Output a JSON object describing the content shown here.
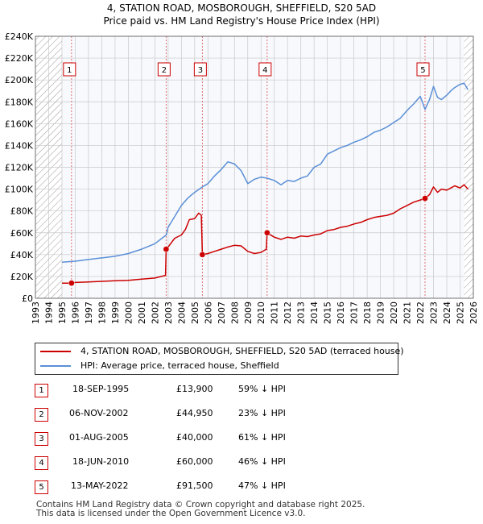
{
  "title_line1": "4, STATION ROAD, MOSBOROUGH, SHEFFIELD, S20 5AD",
  "title_line2": "Price paid vs. HM Land Registry's House Price Index (HPI)",
  "colors": {
    "property": "#cc0000",
    "hpi": "#5b8fd6",
    "shade": "#e8eef8",
    "hatch": "#999999",
    "grid": "#c8c8c8",
    "vline": "#e06060"
  },
  "legend": {
    "property_label": "4, STATION ROAD, MOSBOROUGH, SHEFFIELD, S20 5AD (terraced house)",
    "hpi_label": "HPI: Average price, terraced house, Sheffield"
  },
  "sales": [
    {
      "num": "1",
      "date": "18-SEP-1995",
      "price": "£13,900",
      "hpi": "59% ↓ HPI"
    },
    {
      "num": "2",
      "date": "06-NOV-2002",
      "price": "£44,950",
      "hpi": "23% ↓ HPI"
    },
    {
      "num": "3",
      "date": "01-AUG-2005",
      "price": "£40,000",
      "hpi": "61% ↓ HPI"
    },
    {
      "num": "4",
      "date": "18-JUN-2010",
      "price": "£60,000",
      "hpi": "46% ↓ HPI"
    },
    {
      "num": "5",
      "date": "13-MAY-2022",
      "price": "£91,500",
      "hpi": "47% ↓ HPI"
    }
  ],
  "footer": {
    "line1": "Contains HM Land Registry data © Crown copyright and database right 2025.",
    "line2": "This data is licensed under the Open Government Licence v3.0."
  },
  "chart_data": {
    "type": "line",
    "title": "4, STATION ROAD, MOSBOROUGH, SHEFFIELD, S20 5AD — Price paid vs. HM Land Registry's House Price Index (HPI)",
    "xlabel": "",
    "ylabel": "",
    "xlim": [
      1993,
      2026
    ],
    "ylim": [
      0,
      240000
    ],
    "x_ticks": [
      1993,
      1994,
      1995,
      1996,
      1997,
      1998,
      1999,
      2000,
      2001,
      2002,
      2003,
      2004,
      2005,
      2006,
      2007,
      2008,
      2009,
      2010,
      2011,
      2012,
      2013,
      2014,
      2015,
      2016,
      2017,
      2018,
      2019,
      2020,
      2021,
      2022,
      2023,
      2024,
      2025,
      2026
    ],
    "y_ticks": [
      0,
      20000,
      40000,
      60000,
      80000,
      100000,
      120000,
      140000,
      160000,
      180000,
      200000,
      220000,
      240000
    ],
    "y_tick_labels": [
      "£0",
      "£20K",
      "£40K",
      "£60K",
      "£80K",
      "£100K",
      "£120K",
      "£140K",
      "£160K",
      "£180K",
      "£200K",
      "£220K",
      "£240K"
    ],
    "shaded_ranges": [
      [
        1993,
        1995.0
      ],
      [
        2025.3,
        2026
      ]
    ],
    "sale_markers": [
      {
        "label": "1",
        "x": 1995.72,
        "y": 13900
      },
      {
        "label": "2",
        "x": 2002.85,
        "y": 44950
      },
      {
        "label": "3",
        "x": 2005.58,
        "y": 40000
      },
      {
        "label": "4",
        "x": 2010.46,
        "y": 60000
      },
      {
        "label": "5",
        "x": 2022.36,
        "y": 91500
      }
    ],
    "series": [
      {
        "name": "4, STATION ROAD, MOSBOROUGH, SHEFFIELD, S20 5AD (terraced house)",
        "x": [
          1995.0,
          1995.72,
          1996.0,
          1997.0,
          1998.0,
          1999.0,
          2000.0,
          2001.0,
          2002.0,
          2002.8,
          2002.85,
          2003.0,
          2003.5,
          2004.0,
          2004.3,
          2004.6,
          2005.0,
          2005.3,
          2005.5,
          2005.58,
          2006.0,
          2006.5,
          2007.0,
          2007.5,
          2008.0,
          2008.5,
          2009.0,
          2009.5,
          2010.0,
          2010.4,
          2010.46,
          2011.0,
          2011.5,
          2012.0,
          2012.5,
          2013.0,
          2013.5,
          2014.0,
          2014.5,
          2015.0,
          2015.5,
          2016.0,
          2016.5,
          2017.0,
          2017.5,
          2018.0,
          2018.5,
          2019.0,
          2019.5,
          2020.0,
          2020.5,
          2021.0,
          2021.5,
          2022.0,
          2022.36,
          2022.7,
          2023.0,
          2023.3,
          2023.6,
          2024.0,
          2024.3,
          2024.6,
          2025.0,
          2025.3,
          2025.6
        ],
        "y": [
          13900,
          13900,
          14500,
          15000,
          15500,
          16000,
          16500,
          17500,
          18500,
          21000,
          44950,
          47000,
          55000,
          58000,
          63000,
          72000,
          73000,
          78000,
          76000,
          40000,
          41000,
          43000,
          45000,
          47000,
          48500,
          48000,
          43000,
          41000,
          42000,
          45000,
          60000,
          56000,
          54000,
          56000,
          55000,
          57000,
          56500,
          58000,
          59000,
          62000,
          63000,
          65000,
          66000,
          68000,
          69500,
          72000,
          74000,
          75000,
          76000,
          78000,
          82000,
          85000,
          88000,
          90000,
          91500,
          95000,
          102000,
          97000,
          100000,
          99000,
          101000,
          103000,
          101000,
          104000,
          100000
        ]
      },
      {
        "name": "HPI: Average price, terraced house, Sheffield",
        "x": [
          1995.0,
          1996.0,
          1997.0,
          1998.0,
          1999.0,
          2000.0,
          2001.0,
          2002.0,
          2002.85,
          2003.0,
          2003.5,
          2004.0,
          2004.5,
          2005.0,
          2005.58,
          2006.0,
          2006.5,
          2007.0,
          2007.5,
          2008.0,
          2008.5,
          2009.0,
          2009.5,
          2010.0,
          2010.46,
          2011.0,
          2011.5,
          2012.0,
          2012.5,
          2013.0,
          2013.5,
          2014.0,
          2014.5,
          2015.0,
          2015.5,
          2016.0,
          2016.5,
          2017.0,
          2017.5,
          2018.0,
          2018.5,
          2019.0,
          2019.5,
          2020.0,
          2020.5,
          2021.0,
          2021.5,
          2022.0,
          2022.36,
          2022.7,
          2023.0,
          2023.3,
          2023.6,
          2024.0,
          2024.3,
          2024.6,
          2025.0,
          2025.3,
          2025.6
        ],
        "y": [
          33000,
          34000,
          35500,
          37000,
          38500,
          41000,
          45000,
          50000,
          58000,
          65000,
          75000,
          85000,
          92000,
          97000,
          102000,
          105000,
          112000,
          118000,
          125000,
          123000,
          117000,
          105000,
          109000,
          111000,
          110000,
          108000,
          104000,
          108000,
          107000,
          110000,
          112000,
          120000,
          123000,
          132000,
          135000,
          138000,
          140000,
          143000,
          145000,
          148000,
          152000,
          154000,
          157000,
          161000,
          165000,
          172000,
          178000,
          185000,
          173000,
          182000,
          194000,
          184000,
          182000,
          186000,
          190000,
          193000,
          196000,
          197000,
          191000
        ]
      }
    ]
  }
}
